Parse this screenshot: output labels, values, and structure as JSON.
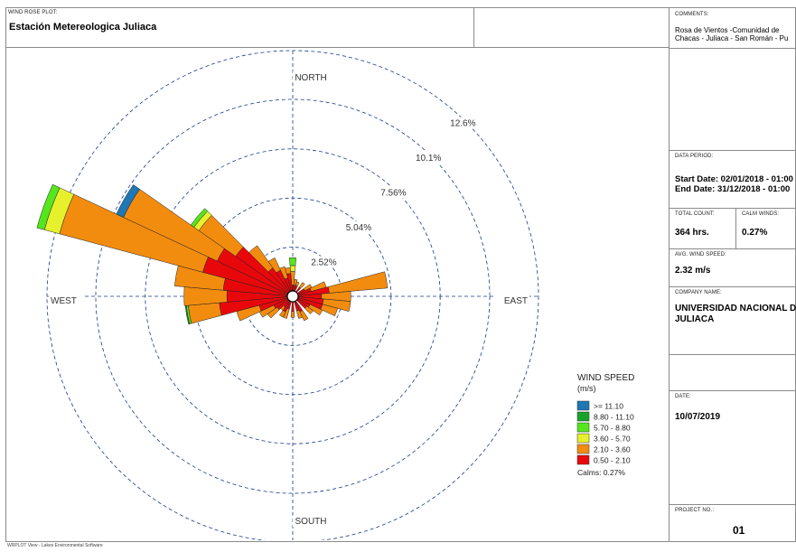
{
  "header": {
    "plot_label": "WIND ROSE PLOT:",
    "plot_title": "Estación Metereologica Juliaca"
  },
  "side": {
    "comments_label": "COMMENTS:",
    "comments_line1": "Rosa de Vientos -Comunidad de",
    "comments_line2": "Chacas - Juliaca - San Román - Pu",
    "period_label": "DATA PERIOD:",
    "start": "Start Date: 02/01/2018 - 01:00",
    "end": "End Date: 31/12/2018 - 01:00",
    "total_label": "TOTAL COUNT:",
    "total_value": "364 hrs.",
    "calm_label": "CALM WINDS:",
    "calm_value": "0.27%",
    "avg_label": "AVG. WIND SPEED:",
    "avg_value": "2.32 m/s",
    "company_label": "COMPANY NAME:",
    "company_line1": "UNIVERSIDAD NACIONAL DE",
    "company_line2": "JULIACA",
    "date_label": "DATE:",
    "date_value": "10/07/2019",
    "project_label": "PROJECT NO.:",
    "project_value": "01"
  },
  "footer": "WRPLOT View - Lakes Environmental Software",
  "chart_data": {
    "type": "wind-rose",
    "directions_labels": [
      "NORTH",
      "EAST",
      "SOUTH",
      "WEST"
    ],
    "ring_labels": [
      "2.52%",
      "5.04%",
      "7.56%",
      "10.1%",
      "12.6%"
    ],
    "ring_values": [
      2.52,
      5.04,
      7.56,
      10.1,
      12.6
    ],
    "legend": {
      "title": "WIND SPEED",
      "unit": "(m/s)",
      "classes": [
        {
          "label": ">= 11.10",
          "color": "#1f77b4"
        },
        {
          "label": "8.80 - 11.10",
          "color": "#17a32a"
        },
        {
          "label": "5.70 - 8.80",
          "color": "#55e61d"
        },
        {
          "label": "3.60 - 5.70",
          "color": "#e6f02c"
        },
        {
          "label": "2.10 - 3.60",
          "color": "#f28c0f"
        },
        {
          "label": "0.50 - 2.10",
          "color": "#e8080c"
        }
      ],
      "calms": "Calms: 0.27%"
    },
    "sector_width_deg": 10,
    "sectors": [
      {
        "dir": 0,
        "values": [
          0.3,
          0.7,
          0.3,
          0.4,
          0,
          0
        ]
      },
      {
        "dir": 10,
        "values": [
          0.3,
          0.3,
          0,
          0,
          0,
          0
        ]
      },
      {
        "dir": 20,
        "values": [
          0.3,
          0.2,
          0,
          0,
          0,
          0
        ]
      },
      {
        "dir": 40,
        "values": [
          0.3,
          0.3,
          0,
          0,
          0,
          0
        ]
      },
      {
        "dir": 60,
        "values": [
          0.4,
          0.4,
          0,
          0,
          0,
          0
        ]
      },
      {
        "dir": 70,
        "values": [
          0.7,
          0.8,
          0,
          0,
          0,
          0
        ]
      },
      {
        "dir": 80,
        "values": [
          1.6,
          3.0,
          0,
          0,
          0,
          0
        ]
      },
      {
        "dir": 90,
        "values": [
          1.2,
          1.5,
          0,
          0,
          0,
          0
        ]
      },
      {
        "dir": 100,
        "values": [
          1.3,
          1.4,
          0,
          0,
          0,
          0
        ]
      },
      {
        "dir": 110,
        "values": [
          1.3,
          0.8,
          0,
          0,
          0,
          0
        ]
      },
      {
        "dir": 120,
        "values": [
          0.7,
          0.7,
          0,
          0,
          0,
          0
        ]
      },
      {
        "dir": 130,
        "values": [
          0.6,
          0.4,
          0,
          0,
          0,
          0
        ]
      },
      {
        "dir": 150,
        "values": [
          0.6,
          0.5,
          0,
          0,
          0,
          0
        ]
      },
      {
        "dir": 160,
        "values": [
          0.5,
          0.4,
          0,
          0,
          0,
          0
        ]
      },
      {
        "dir": 180,
        "values": [
          0.5,
          0.3,
          0,
          0,
          0,
          0
        ]
      },
      {
        "dir": 200,
        "values": [
          0.4,
          0.5,
          0,
          0,
          0,
          0
        ]
      },
      {
        "dir": 210,
        "values": [
          0.6,
          0.3,
          0,
          0,
          0,
          0
        ]
      },
      {
        "dir": 220,
        "values": [
          0.4,
          0.2,
          0,
          0,
          0,
          0
        ]
      },
      {
        "dir": 230,
        "values": [
          0.7,
          0.6,
          0,
          0,
          0,
          0
        ]
      },
      {
        "dir": 240,
        "values": [
          0.8,
          0.8,
          0,
          0,
          0,
          0
        ]
      },
      {
        "dir": 250,
        "values": [
          1.5,
          1.2,
          0,
          0,
          0,
          0
        ]
      },
      {
        "dir": 260,
        "values": [
          3.5,
          1.6,
          0,
          0.1,
          0.05,
          0
        ]
      },
      {
        "dir": 270,
        "values": [
          3.1,
          2.2,
          0,
          0,
          0,
          0
        ]
      },
      {
        "dir": 280,
        "values": [
          3.3,
          2.5,
          0,
          0,
          0,
          0
        ]
      },
      {
        "dir": 290,
        "values": [
          4.5,
          7.6,
          0.8,
          0.4,
          0,
          0
        ]
      },
      {
        "dir": 300,
        "values": [
          4.0,
          5.3,
          0,
          0,
          0,
          0.4
        ]
      },
      {
        "dir": 310,
        "values": [
          3.3,
          2.3,
          0.3,
          0.2,
          0,
          0
        ]
      },
      {
        "dir": 320,
        "values": [
          1.5,
          1.4,
          0,
          0,
          0,
          0
        ]
      },
      {
        "dir": 330,
        "values": [
          1.2,
          0.7,
          0,
          0,
          0,
          0
        ]
      },
      {
        "dir": 340,
        "values": [
          0.7,
          0.6,
          0,
          0,
          0,
          0
        ]
      },
      {
        "dir": 350,
        "values": [
          0.9,
          0.3,
          0,
          0,
          0,
          0
        ]
      }
    ]
  }
}
